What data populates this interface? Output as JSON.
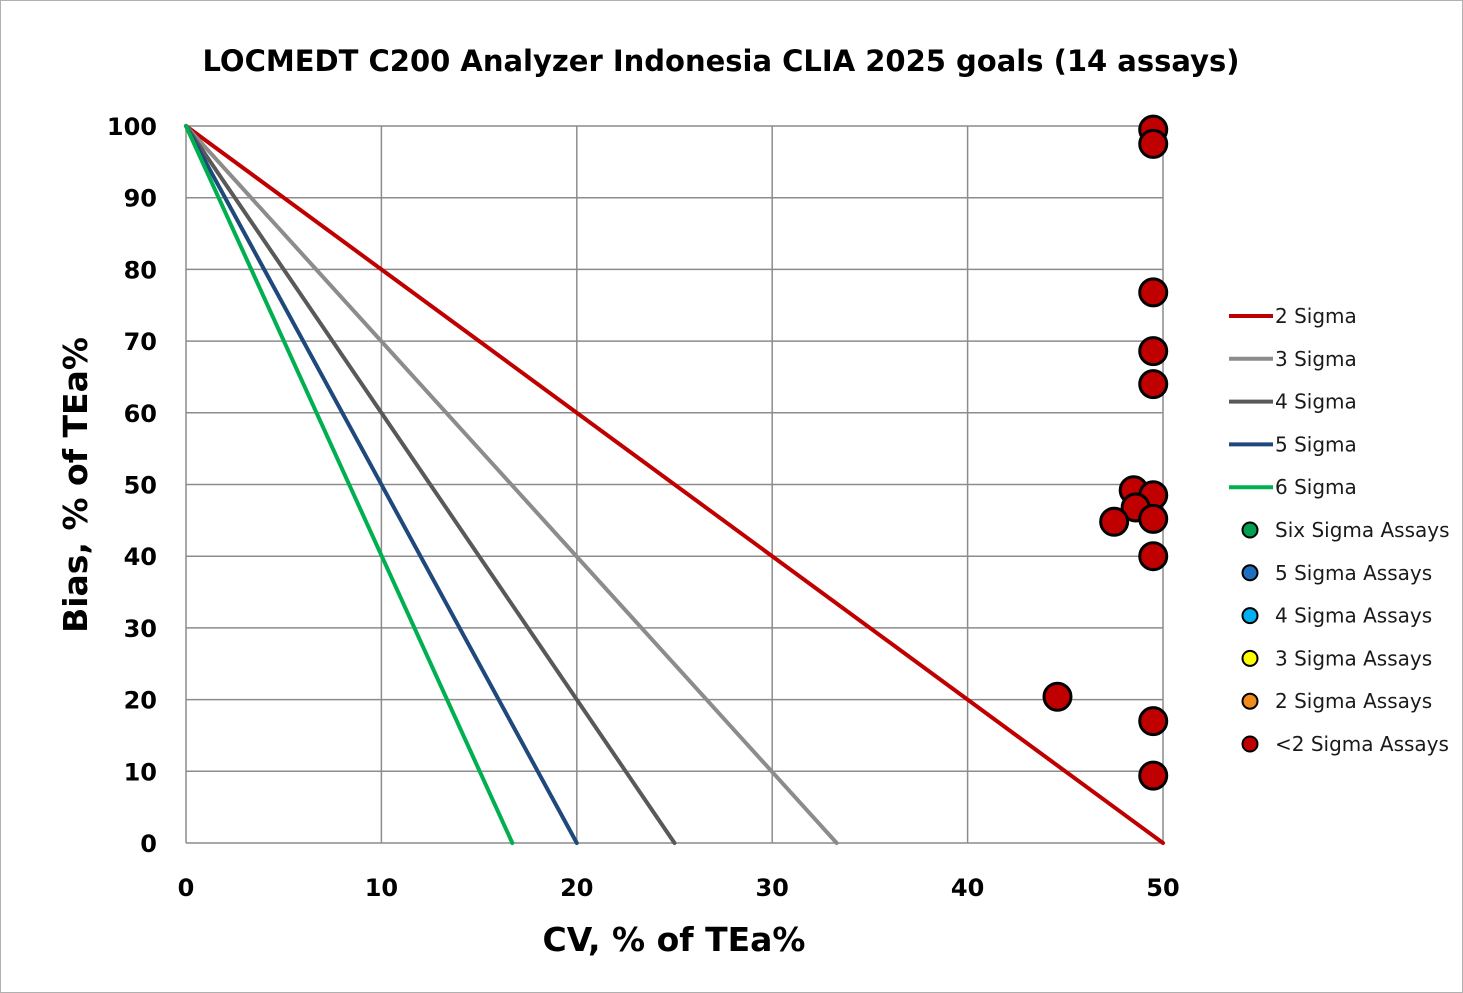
{
  "chart_data": {
    "type": "scatter",
    "title": "LOCMEDT C200 Analyzer Indonesia CLIA 2025 goals (14 assays)",
    "xlabel": "CV, % of TEa%",
    "ylabel": "Bias, % of TEa%",
    "xlim": [
      0,
      50
    ],
    "ylim": [
      0,
      100
    ],
    "xticks": [
      "0",
      "10",
      "20",
      "30",
      "40",
      "50"
    ],
    "yticks": [
      "0",
      "10",
      "20",
      "30",
      "40",
      "50",
      "60",
      "70",
      "80",
      "90",
      "100"
    ],
    "grid": true,
    "legend_position": "right",
    "lines": [
      {
        "name": "2 Sigma",
        "color": "#c00000",
        "x": [
          0,
          50
        ],
        "y": [
          100,
          0
        ]
      },
      {
        "name": "3 Sigma",
        "color": "#8c8c8c",
        "x": [
          0,
          33.3
        ],
        "y": [
          100,
          0
        ]
      },
      {
        "name": "4 Sigma",
        "color": "#595959",
        "x": [
          0,
          25
        ],
        "y": [
          100,
          0
        ]
      },
      {
        "name": "5 Sigma",
        "color": "#1f497d",
        "x": [
          0,
          20
        ],
        "y": [
          100,
          0
        ]
      },
      {
        "name": "6 Sigma",
        "color": "#00b050",
        "x": [
          0,
          16.7
        ],
        "y": [
          100,
          0
        ]
      }
    ],
    "marker_series": [
      {
        "name": "Six Sigma Assays",
        "color": "#00a050",
        "points": []
      },
      {
        "name": "5 Sigma Assays",
        "color": "#1f6fc0",
        "points": []
      },
      {
        "name": "4 Sigma Assays",
        "color": "#00b0f0",
        "points": []
      },
      {
        "name": "3 Sigma Assays",
        "color": "#ffff00",
        "points": []
      },
      {
        "name": "2 Sigma Assays",
        "color": "#f08c1e",
        "points": []
      },
      {
        "name": "<2 Sigma Assays",
        "color": "#c00000",
        "points": [
          {
            "x": 49.5,
            "y": 99.5
          },
          {
            "x": 49.5,
            "y": 97.5
          },
          {
            "x": 49.5,
            "y": 76.8
          },
          {
            "x": 49.5,
            "y": 68.6
          },
          {
            "x": 49.5,
            "y": 64.0
          },
          {
            "x": 48.5,
            "y": 49.2
          },
          {
            "x": 49.5,
            "y": 48.5
          },
          {
            "x": 48.6,
            "y": 46.8
          },
          {
            "x": 47.5,
            "y": 44.8
          },
          {
            "x": 49.5,
            "y": 45.2
          },
          {
            "x": 49.5,
            "y": 40.0
          },
          {
            "x": 44.6,
            "y": 20.4
          },
          {
            "x": 49.5,
            "y": 17.0
          },
          {
            "x": 49.5,
            "y": 9.4
          }
        ]
      }
    ]
  }
}
